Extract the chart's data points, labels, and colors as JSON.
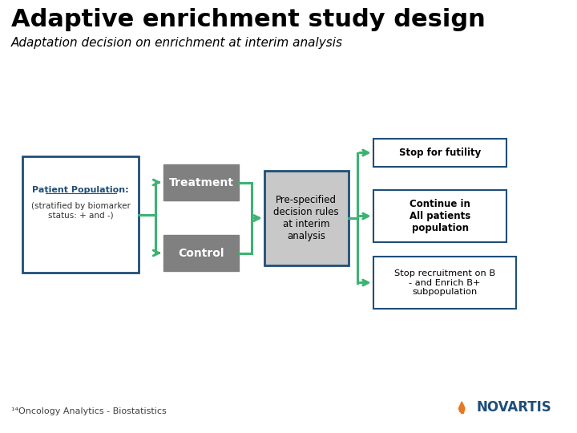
{
  "title": "Adaptive enrichment study design",
  "subtitle": "Adaptation decision on enrichment at interim analysis",
  "title_color": "#000000",
  "subtitle_color": "#000000",
  "bg_color": "#ffffff",
  "arrow_color": "#3cb371",
  "box_patient_border": "#1f4e79",
  "box_patient_text_color": "#1f4e79",
  "box_treatment_text": "Treatment",
  "box_control_text": "Control",
  "box_decision_text": "Pre-specified\ndecision rules\nat interim\nanalysis",
  "box_decision_bg": "#c8c8c8",
  "box_decision_border": "#1f4e79",
  "box_decision_text_color": "#000000",
  "box_futility_text": "Stop for futility",
  "box_continue_text": "Continue in\nAll patients\npopulation",
  "box_enrich_text": "Stop recruitment on B\n- and Enrich B+\nsubpopulation",
  "box_outcome_border": "#1f4e79",
  "box_outcome_text_color": "#000000",
  "box_patient_line1": "Patient Population:",
  "box_patient_line2": "(stratified by biomarker\nstatus: + and -)",
  "footer_text": "¹⁴Oncology Analytics - Biostatistics",
  "footer_color": "#404040",
  "novartis_text": "NOVARTIS",
  "novartis_color": "#1f4e79",
  "novartis_flame_color": "#e87722"
}
